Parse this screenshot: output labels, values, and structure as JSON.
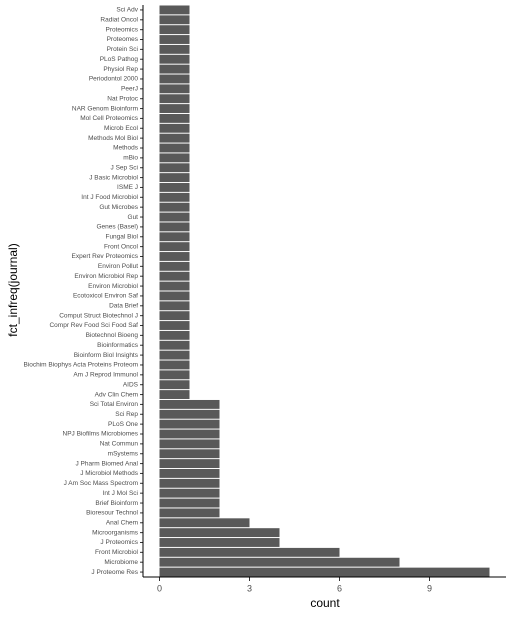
{
  "chart_data": {
    "type": "bar",
    "orientation": "horizontal",
    "x_label": "count",
    "y_label": "fct_infreq(journal)",
    "categories": [
      "Sci Adv",
      "Radiat Oncol",
      "Proteomics",
      "Proteomes",
      "Protein Sci",
      "PLoS Pathog",
      "Physiol Rep",
      "Periodontol 2000",
      "PeerJ",
      "Nat Protoc",
      "NAR Genom Bioinform",
      "Mol Cell Proteomics",
      "Microb Ecol",
      "Methods Mol Biol",
      "Methods",
      "mBio",
      "J Sep Sci",
      "J Basic Microbiol",
      "ISME J",
      "Int J Food Microbiol",
      "Gut Microbes",
      "Gut",
      "Genes (Basel)",
      "Fungal Biol",
      "Front Oncol",
      "Expert Rev Proteomics",
      "Environ Pollut",
      "Environ Microbiol Rep",
      "Environ Microbiol",
      "Ecotoxicol Environ Saf",
      "Data Brief",
      "Comput Struct Biotechnol J",
      "Compr Rev Food Sci Food Saf",
      "Biotechnol Bioeng",
      "Bioinformatics",
      "Bioinform Biol Insights",
      "Biochim Biophys Acta Proteins Proteom",
      "Am J Reprod Immunol",
      "AIDS",
      "Adv Clin Chem",
      "Sci Total Environ",
      "Sci Rep",
      "PLoS One",
      "NPJ Biofilms Microbiomes",
      "Nat Commun",
      "mSystems",
      "J Pharm Biomed Anal",
      "J Microbiol Methods",
      "J Am Soc Mass Spectrom",
      "Int J Mol Sci",
      "Brief Bioinform",
      "Bioresour Technol",
      "Anal Chem",
      "Microorganisms",
      "J Proteomics",
      "Front Microbiol",
      "Microbiome",
      "J Proteome Res"
    ],
    "values": [
      1,
      1,
      1,
      1,
      1,
      1,
      1,
      1,
      1,
      1,
      1,
      1,
      1,
      1,
      1,
      1,
      1,
      1,
      1,
      1,
      1,
      1,
      1,
      1,
      1,
      1,
      1,
      1,
      1,
      1,
      1,
      1,
      1,
      1,
      1,
      1,
      1,
      1,
      1,
      1,
      2,
      2,
      2,
      2,
      2,
      2,
      2,
      2,
      2,
      2,
      2,
      2,
      3,
      4,
      4,
      6,
      8,
      11
    ],
    "color": "#595959",
    "xlim": [
      -0.55,
      11.55
    ],
    "xticks": [
      0,
      3,
      6,
      9
    ],
    "grid": false
  }
}
